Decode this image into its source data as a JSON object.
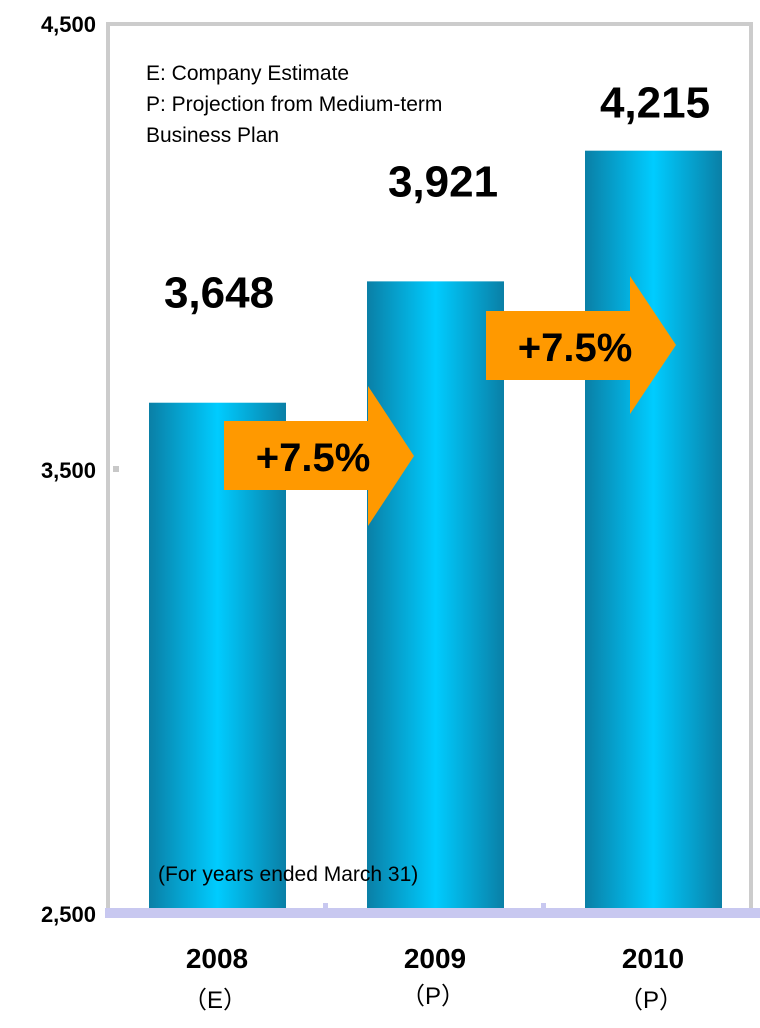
{
  "chart_data": {
    "type": "bar",
    "categories": [
      "2008",
      "2009",
      "2010"
    ],
    "category_sublabels": [
      "（E）",
      "（P）",
      "（P）"
    ],
    "values": [
      3648,
      3921,
      4215
    ],
    "value_labels": [
      "3,648",
      "3,921",
      "4,215"
    ],
    "ylim": [
      2500,
      4500
    ],
    "yticks": [
      2500,
      3500,
      4500
    ],
    "ytick_labels": [
      "2,500",
      "3,500",
      "4,500"
    ],
    "grid": false,
    "title": "",
    "xlabel": "",
    "ylabel": "",
    "legend_notes": [
      "E: Company Estimate",
      "P: Projection from Medium-term",
      "Business Plan"
    ],
    "footnote": "(For years ended March 31)",
    "growth_arrows": [
      {
        "label": "+7.5%",
        "from": "2008",
        "to": "2009"
      },
      {
        "label": "+7.5%",
        "from": "2009",
        "to": "2010"
      }
    ],
    "colors": {
      "bar_edge": "#0a7fa6",
      "bar_center": "#00ccff",
      "arrow": "#ff9900",
      "frame": "#cccccc",
      "axis": "#c8c8f0"
    }
  }
}
